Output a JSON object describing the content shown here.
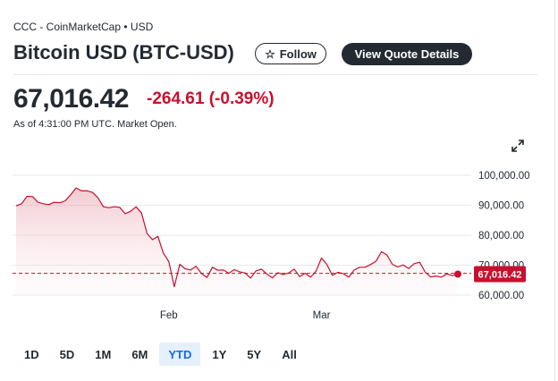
{
  "header": {
    "source": "CCC - CoinMarketCap • USD",
    "title": "Bitcoin USD (BTC-USD)",
    "follow_label": "Follow",
    "quote_label": "View Quote Details"
  },
  "quote": {
    "price": "67,016.42",
    "change": "-264.61 (-0.39%)",
    "as_of": "As of 4:31:00 PM UTC. Market Open."
  },
  "colors": {
    "negative": "#c8102e",
    "accent": "#0f69ff",
    "dark": "#232a31"
  },
  "chart_data": {
    "type": "area",
    "ylim": [
      60000,
      100000
    ],
    "y_ticks": [
      "100,000.00",
      "90,000.00",
      "80,000.00",
      "70,000.00",
      "60,000.00"
    ],
    "y_tick_values": [
      100000,
      90000,
      80000,
      70000,
      60000
    ],
    "x_tick_labels": [
      "Feb",
      "Mar"
    ],
    "x_tick_index": [
      28,
      56
    ],
    "last_value_label": "67,016.42",
    "reference_value": 67281,
    "values": [
      89800,
      90500,
      93000,
      92900,
      91000,
      90500,
      90200,
      91000,
      90800,
      91500,
      93500,
      95800,
      94800,
      94800,
      94300,
      92500,
      89500,
      89200,
      89500,
      89300,
      87200,
      88000,
      89500,
      87400,
      80600,
      78500,
      79600,
      74000,
      71200,
      62800,
      70300,
      68800,
      68400,
      69600,
      67200,
      65900,
      69300,
      68300,
      68400,
      67300,
      68500,
      67800,
      67400,
      65700,
      68100,
      68700,
      67000,
      65800,
      67500,
      66900,
      67400,
      68700,
      66200,
      67300,
      66000,
      68000,
      72400,
      70200,
      66600,
      67600,
      67200,
      66000,
      68400,
      69300,
      69300,
      70200,
      71300,
      74500,
      73400,
      70300,
      69400,
      70100,
      68900,
      70500,
      71000,
      67700,
      66100,
      66400,
      66000,
      67100,
      66500,
      67016
    ],
    "grid": true
  },
  "tabs": [
    "1D",
    "5D",
    "1M",
    "6M",
    "YTD",
    "1Y",
    "5Y",
    "All"
  ],
  "active_tab": "YTD"
}
